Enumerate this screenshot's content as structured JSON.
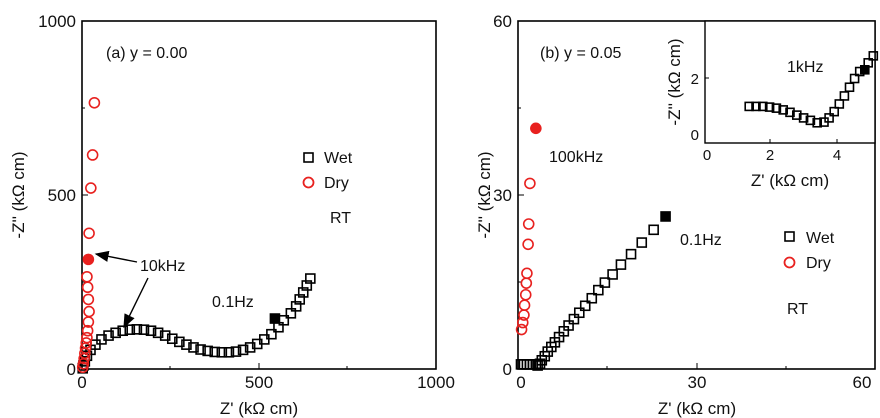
{
  "colors": {
    "wet": "#000000",
    "dry": "#e8211f",
    "axis": "#000000"
  },
  "chart_data": [
    {
      "type": "scatter",
      "panel_label": "(a) y = 0.00",
      "xlabel": "Z' (kΩ cm)",
      "ylabel": "-Z'' (kΩ cm)",
      "xlim": [
        0,
        1000
      ],
      "ylim": [
        0,
        1000
      ],
      "xticks": [
        0,
        500,
        1000
      ],
      "yticks": [
        0,
        500,
        1000
      ],
      "legend": {
        "placement": "right",
        "entries": [
          "Wet",
          "Dry"
        ]
      },
      "annotations": {
        "condition": "RT",
        "freq_dry": "10kHz",
        "freq_wet": "0.1Hz"
      },
      "series": [
        {
          "name": "Wet",
          "marker": "open-square",
          "points": [
            [
              2,
              2
            ],
            [
              4,
              10
            ],
            [
              8,
              22
            ],
            [
              14,
              38
            ],
            [
              24,
              55
            ],
            [
              38,
              70
            ],
            [
              55,
              85
            ],
            [
              75,
              96
            ],
            [
              95,
              104
            ],
            [
              115,
              110
            ],
            [
              135,
              113
            ],
            [
              155,
              114
            ],
            [
              175,
              113
            ],
            [
              195,
              110
            ],
            [
              215,
              104
            ],
            [
              235,
              96
            ],
            [
              255,
              87
            ],
            [
              275,
              78
            ],
            [
              295,
              70
            ],
            [
              315,
              62
            ],
            [
              335,
              56
            ],
            [
              355,
              52
            ],
            [
              375,
              49
            ],
            [
              395,
              48
            ],
            [
              415,
              48
            ],
            [
              435,
              50
            ],
            [
              455,
              55
            ],
            [
              475,
              62
            ],
            [
              495,
              72
            ],
            [
              515,
              85
            ],
            [
              535,
              100
            ],
            [
              555,
              120
            ],
            [
              570,
              140
            ],
            [
              590,
              160
            ],
            [
              605,
              180
            ],
            [
              615,
              200
            ],
            [
              625,
              220
            ],
            [
              635,
              240
            ],
            [
              645,
              260
            ]
          ],
          "filled_point": [
            545,
            145
          ]
        },
        {
          "name": "Dry",
          "marker": "open-circle",
          "points": [
            [
              2,
              5
            ],
            [
              4,
              15
            ],
            [
              6,
              30
            ],
            [
              8,
              45
            ],
            [
              10,
              60
            ],
            [
              12,
              75
            ],
            [
              14,
              90
            ],
            [
              16,
              110
            ],
            [
              18,
              135
            ],
            [
              20,
              165
            ],
            [
              18,
              200
            ],
            [
              16,
              235
            ],
            [
              14,
              265
            ],
            [
              20,
              390
            ],
            [
              25,
              520
            ],
            [
              30,
              615
            ],
            [
              35,
              765
            ]
          ],
          "filled_point": [
            18,
            315
          ]
        }
      ]
    },
    {
      "type": "scatter",
      "panel_label": "(b) y = 0.05",
      "xlabel": "Z' (kΩ cm)",
      "ylabel": "-Z'' (kΩ cm)",
      "xlim": [
        0,
        60
      ],
      "ylim": [
        0,
        60
      ],
      "xticks": [
        0,
        30,
        60
      ],
      "yticks": [
        0,
        30,
        60
      ],
      "legend": {
        "placement": "right",
        "entries": [
          "Wet",
          "Dry"
        ]
      },
      "annotations": {
        "condition": "RT",
        "freq_dry": "100kHz",
        "freq_wet": "0.1Hz"
      },
      "series": [
        {
          "name": "Wet",
          "marker": "open-square",
          "points": [
            [
              0.5,
              0.8
            ],
            [
              1,
              0.8
            ],
            [
              1.5,
              0.8
            ],
            [
              2,
              0.8
            ],
            [
              2.5,
              0.8
            ],
            [
              3,
              0.8
            ],
            [
              3.3,
              0.6
            ],
            [
              3.7,
              0.9
            ],
            [
              4,
              1.5
            ],
            [
              4.5,
              2.2
            ],
            [
              5,
              3
            ],
            [
              5.6,
              3.8
            ],
            [
              6.2,
              4.6
            ],
            [
              6.9,
              5.5
            ],
            [
              7.7,
              6.5
            ],
            [
              8.5,
              7.5
            ],
            [
              9.4,
              8.6
            ],
            [
              10.3,
              9.7
            ],
            [
              11.3,
              10.9
            ],
            [
              12.4,
              12.2
            ],
            [
              13.5,
              13.6
            ],
            [
              14.6,
              14.9
            ],
            [
              15.9,
              16.3
            ],
            [
              17.3,
              18
            ],
            [
              19,
              19.8
            ],
            [
              20.8,
              21.8
            ],
            [
              22.8,
              24
            ]
          ],
          "filled_point": [
            24.8,
            26.3
          ]
        },
        {
          "name": "Dry",
          "marker": "open-circle",
          "points": [
            [
              0.6,
              6.8
            ],
            [
              0.8,
              8
            ],
            [
              1,
              9.3
            ],
            [
              1.1,
              11
            ],
            [
              1.3,
              12.8
            ],
            [
              1.4,
              14.8
            ],
            [
              1.5,
              16.5
            ],
            [
              1.7,
              21.5
            ],
            [
              1.8,
              25
            ],
            [
              2,
              32
            ]
          ],
          "filled_point": [
            3,
            41.5
          ]
        }
      ],
      "inset": {
        "xlabel": "Z' (kΩ cm)",
        "ylabel": "-Z'' (kΩ cm)",
        "xlim": [
          0,
          5
        ],
        "ylim": [
          0,
          3.5
        ],
        "xticks": [
          0,
          2,
          4
        ],
        "yticks": [
          0,
          2
        ],
        "annotation": "1kHz",
        "points": [
          [
            1.3,
            1.05
          ],
          [
            1.5,
            1.05
          ],
          [
            1.7,
            1.05
          ],
          [
            1.9,
            1.03
          ],
          [
            2.1,
            1.0
          ],
          [
            2.3,
            0.95
          ],
          [
            2.5,
            0.88
          ],
          [
            2.7,
            0.8
          ],
          [
            2.9,
            0.72
          ],
          [
            3.1,
            0.65
          ],
          [
            3.3,
            0.58
          ],
          [
            3.5,
            0.6
          ],
          [
            3.65,
            0.72
          ],
          [
            3.8,
            0.9
          ],
          [
            3.95,
            1.12
          ],
          [
            4.1,
            1.35
          ],
          [
            4.25,
            1.6
          ],
          [
            4.4,
            1.85
          ],
          [
            4.55,
            2.05
          ],
          [
            4.8,
            2.3
          ],
          [
            4.95,
            2.5
          ]
        ],
        "filled_point": [
          4.7,
          2.1
        ]
      }
    }
  ]
}
